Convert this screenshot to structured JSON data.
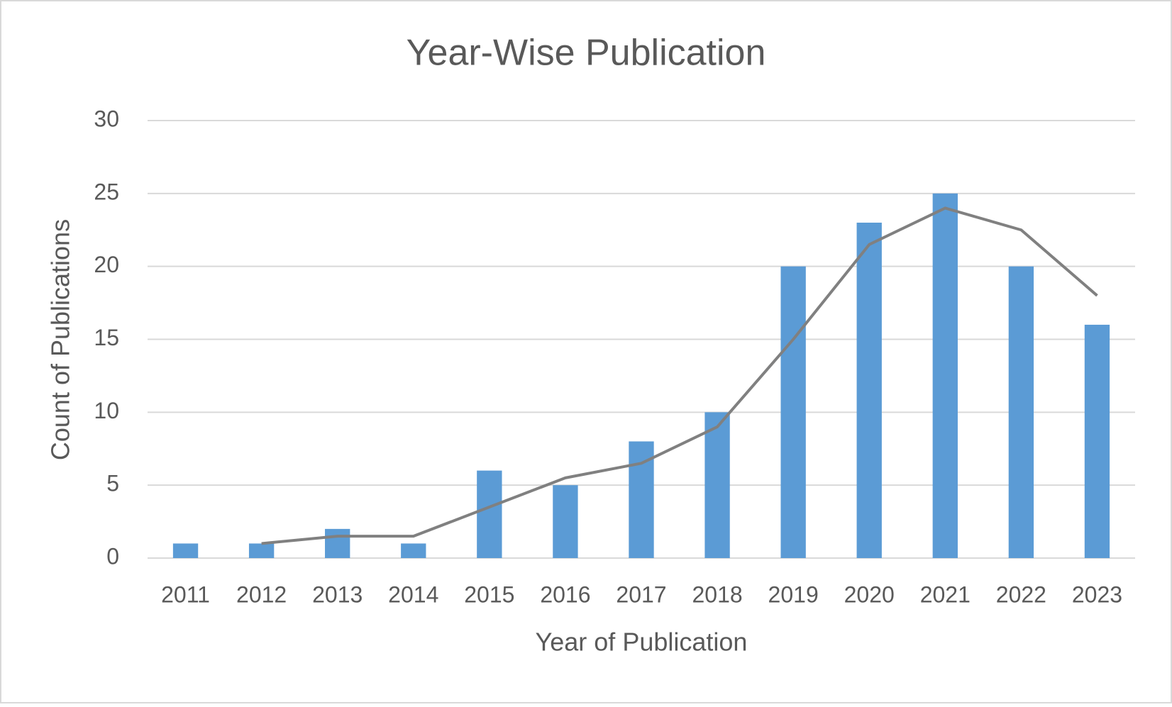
{
  "chart_data": {
    "type": "bar",
    "title": "Year-Wise Publication",
    "x_label": "Year of Publication",
    "y_label": "Count of Publications",
    "categories": [
      "2011",
      "2012",
      "2013",
      "2014",
      "2015",
      "2016",
      "2017",
      "2018",
      "2019",
      "2020",
      "2021",
      "2022",
      "2023"
    ],
    "series": [
      {
        "type": "bar",
        "color": "#5b9bd5",
        "values": [
          1,
          1,
          2,
          1,
          6,
          5,
          8,
          10,
          20,
          23,
          25,
          20,
          16
        ]
      },
      {
        "type": "line",
        "color": "#808080",
        "values": [
          null,
          1,
          1.5,
          1.5,
          3.5,
          5.5,
          6.5,
          9,
          15,
          21.5,
          24,
          22.5,
          18
        ]
      }
    ],
    "ylim": [
      0,
      30
    ],
    "yticks": [
      0,
      5,
      10,
      15,
      20,
      25,
      30
    ],
    "grid": true
  }
}
